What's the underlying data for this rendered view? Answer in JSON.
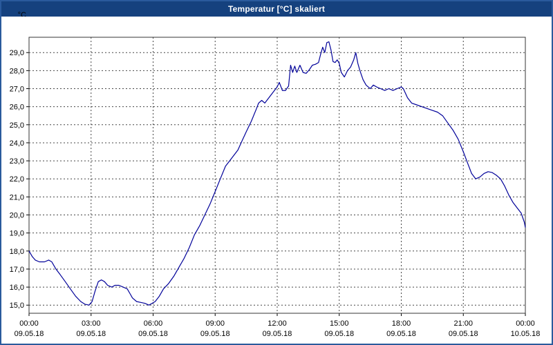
{
  "window": {
    "title": "Temperatur [°C] skaliert"
  },
  "colors": {
    "titlebar": "#15417e",
    "title_text": "#ffffff",
    "window_border": "#2a5a9c",
    "line": "#000099",
    "grid": "#444444",
    "plot_border": "#333333",
    "background": "#ffffff"
  },
  "chart_data": {
    "type": "line",
    "title": "Temperatur [°C] skaliert",
    "ylabel": "°C",
    "xlabel": "",
    "grid": true,
    "legend": "none",
    "xlim": [
      0,
      24
    ],
    "ylim": [
      14.55,
      29.85
    ],
    "y_ticks": [
      {
        "v": 29,
        "label": "29,0"
      },
      {
        "v": 28,
        "label": "28,0"
      },
      {
        "v": 27,
        "label": "27,0"
      },
      {
        "v": 26,
        "label": "26,0"
      },
      {
        "v": 25,
        "label": "25,0"
      },
      {
        "v": 24,
        "label": "24,0"
      },
      {
        "v": 23,
        "label": "23,0"
      },
      {
        "v": 22,
        "label": "22,0"
      },
      {
        "v": 21,
        "label": "21,0"
      },
      {
        "v": 20,
        "label": "20,0"
      },
      {
        "v": 19,
        "label": "19,0"
      },
      {
        "v": 18,
        "label": "18,0"
      },
      {
        "v": 17,
        "label": "17,0"
      },
      {
        "v": 16,
        "label": "16,0"
      },
      {
        "v": 15,
        "label": "15,0"
      }
    ],
    "x_ticks": [
      {
        "h": 0,
        "time": "00:00",
        "date": "09.05.18"
      },
      {
        "h": 3,
        "time": "03:00",
        "date": "09.05.18"
      },
      {
        "h": 6,
        "time": "06:00",
        "date": "09.05.18"
      },
      {
        "h": 9,
        "time": "09:00",
        "date": "09.05.18"
      },
      {
        "h": 12,
        "time": "12:00",
        "date": "09.05.18"
      },
      {
        "h": 15,
        "time": "15:00",
        "date": "09.05.18"
      },
      {
        "h": 18,
        "time": "18:00",
        "date": "09.05.18"
      },
      {
        "h": 21,
        "time": "21:00",
        "date": "09.05.18"
      },
      {
        "h": 24,
        "time": "00:00",
        "date": "10.05.18"
      }
    ],
    "series": [
      {
        "name": "Temperatur [°C]",
        "color": "#000099",
        "points": [
          [
            0,
            18.0
          ],
          [
            0.15,
            17.7
          ],
          [
            0.3,
            17.5
          ],
          [
            0.5,
            17.4
          ],
          [
            0.75,
            17.4
          ],
          [
            0.95,
            17.5
          ],
          [
            1.1,
            17.4
          ],
          [
            1.3,
            17.0
          ],
          [
            1.5,
            16.7
          ],
          [
            1.75,
            16.3
          ],
          [
            2.0,
            15.9
          ],
          [
            2.25,
            15.5
          ],
          [
            2.5,
            15.2
          ],
          [
            2.7,
            15.05
          ],
          [
            2.9,
            15.0
          ],
          [
            3.05,
            15.2
          ],
          [
            3.2,
            15.8
          ],
          [
            3.35,
            16.3
          ],
          [
            3.5,
            16.4
          ],
          [
            3.65,
            16.3
          ],
          [
            3.8,
            16.1
          ],
          [
            4.0,
            16.0
          ],
          [
            4.15,
            16.1
          ],
          [
            4.35,
            16.1
          ],
          [
            4.55,
            16.0
          ],
          [
            4.75,
            15.9
          ],
          [
            4.9,
            15.6
          ],
          [
            5.0,
            15.4
          ],
          [
            5.2,
            15.2
          ],
          [
            5.4,
            15.15
          ],
          [
            5.6,
            15.1
          ],
          [
            5.8,
            15.0
          ],
          [
            5.95,
            15.1
          ],
          [
            6.1,
            15.2
          ],
          [
            6.3,
            15.5
          ],
          [
            6.5,
            15.9
          ],
          [
            6.75,
            16.2
          ],
          [
            7.0,
            16.6
          ],
          [
            7.25,
            17.1
          ],
          [
            7.5,
            17.6
          ],
          [
            7.75,
            18.2
          ],
          [
            8.0,
            18.9
          ],
          [
            8.25,
            19.4
          ],
          [
            8.5,
            20.0
          ],
          [
            8.75,
            20.6
          ],
          [
            9.0,
            21.3
          ],
          [
            9.25,
            22.0
          ],
          [
            9.5,
            22.7
          ],
          [
            9.7,
            23.0
          ],
          [
            9.9,
            23.3
          ],
          [
            10.1,
            23.6
          ],
          [
            10.3,
            24.1
          ],
          [
            10.5,
            24.6
          ],
          [
            10.75,
            25.2
          ],
          [
            11.0,
            25.9
          ],
          [
            11.1,
            26.2
          ],
          [
            11.25,
            26.35
          ],
          [
            11.4,
            26.2
          ],
          [
            11.6,
            26.5
          ],
          [
            11.8,
            26.8
          ],
          [
            12.0,
            27.1
          ],
          [
            12.1,
            27.35
          ],
          [
            12.25,
            26.9
          ],
          [
            12.4,
            26.9
          ],
          [
            12.55,
            27.15
          ],
          [
            12.65,
            28.3
          ],
          [
            12.75,
            27.9
          ],
          [
            12.85,
            28.25
          ],
          [
            12.95,
            27.9
          ],
          [
            13.1,
            28.3
          ],
          [
            13.25,
            27.9
          ],
          [
            13.4,
            27.85
          ],
          [
            13.55,
            28.05
          ],
          [
            13.7,
            28.3
          ],
          [
            13.85,
            28.35
          ],
          [
            14.0,
            28.45
          ],
          [
            14.1,
            28.9
          ],
          [
            14.2,
            29.3
          ],
          [
            14.3,
            29.0
          ],
          [
            14.4,
            29.55
          ],
          [
            14.5,
            29.6
          ],
          [
            14.6,
            29.15
          ],
          [
            14.7,
            28.5
          ],
          [
            14.8,
            28.45
          ],
          [
            14.9,
            28.6
          ],
          [
            15.0,
            28.4
          ],
          [
            15.1,
            27.9
          ],
          [
            15.25,
            27.65
          ],
          [
            15.4,
            28.0
          ],
          [
            15.55,
            28.2
          ],
          [
            15.7,
            28.6
          ],
          [
            15.8,
            29.0
          ],
          [
            15.9,
            28.4
          ],
          [
            16.0,
            28.0
          ],
          [
            16.15,
            27.5
          ],
          [
            16.3,
            27.2
          ],
          [
            16.5,
            27.0
          ],
          [
            16.65,
            27.2
          ],
          [
            16.8,
            27.1
          ],
          [
            17.0,
            27.0
          ],
          [
            17.2,
            26.9
          ],
          [
            17.4,
            27.0
          ],
          [
            17.6,
            26.9
          ],
          [
            17.8,
            27.0
          ],
          [
            18.0,
            27.1
          ],
          [
            18.1,
            27.0
          ],
          [
            18.3,
            26.5
          ],
          [
            18.5,
            26.2
          ],
          [
            18.75,
            26.1
          ],
          [
            19.0,
            26.0
          ],
          [
            19.25,
            25.9
          ],
          [
            19.5,
            25.8
          ],
          [
            19.75,
            25.7
          ],
          [
            20.0,
            25.5
          ],
          [
            20.25,
            25.1
          ],
          [
            20.5,
            24.7
          ],
          [
            20.75,
            24.2
          ],
          [
            21.0,
            23.5
          ],
          [
            21.2,
            22.9
          ],
          [
            21.4,
            22.3
          ],
          [
            21.6,
            22.0
          ],
          [
            21.8,
            22.1
          ],
          [
            22.0,
            22.3
          ],
          [
            22.2,
            22.4
          ],
          [
            22.4,
            22.35
          ],
          [
            22.6,
            22.2
          ],
          [
            22.8,
            22.0
          ],
          [
            23.0,
            21.6
          ],
          [
            23.2,
            21.1
          ],
          [
            23.4,
            20.7
          ],
          [
            23.6,
            20.4
          ],
          [
            23.8,
            20.1
          ],
          [
            23.95,
            19.6
          ],
          [
            24.0,
            19.3
          ]
        ]
      }
    ]
  }
}
